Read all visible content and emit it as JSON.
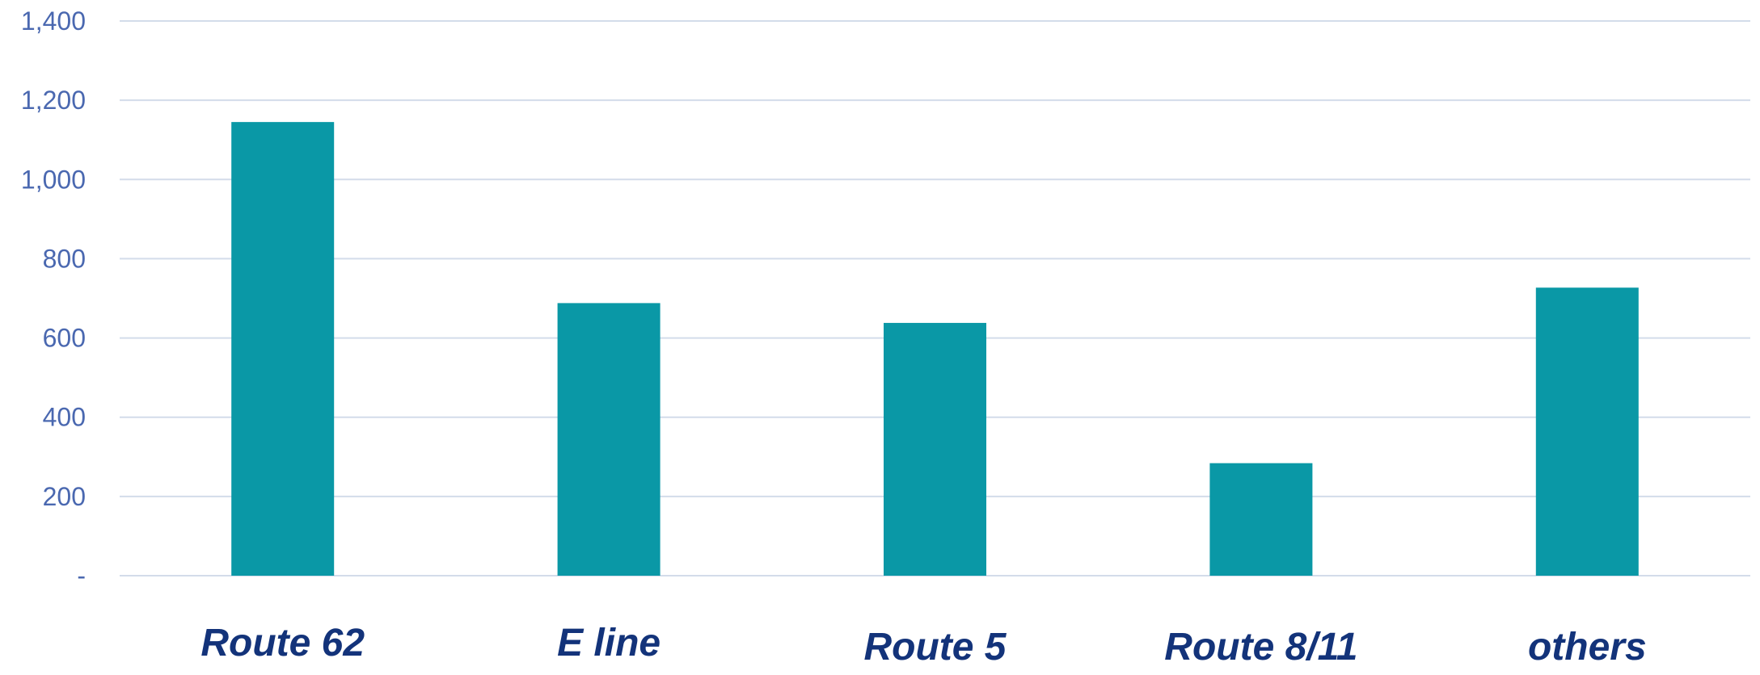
{
  "chart_data": {
    "type": "bar",
    "categories": [
      "Route 62",
      "E line",
      "Route 5",
      "Route 8/11",
      "others"
    ],
    "values": [
      1145,
      688,
      638,
      284,
      727
    ],
    "ylim": [
      0,
      1400
    ],
    "yticks": [
      {
        "value": 0,
        "label": "-"
      },
      {
        "value": 200,
        "label": "200"
      },
      {
        "value": 400,
        "label": "400"
      },
      {
        "value": 600,
        "label": "600"
      },
      {
        "value": 800,
        "label": "800"
      },
      {
        "value": 1000,
        "label": "1,000"
      },
      {
        "value": 1200,
        "label": "1,200"
      },
      {
        "value": 1400,
        "label": "1,400"
      }
    ],
    "grid": true,
    "legend": "none",
    "bar_color": "#0a98a6",
    "axis_label_color": "#4a68b0",
    "category_label_color": "#13337a",
    "gridline_color": "#d3dcea"
  }
}
